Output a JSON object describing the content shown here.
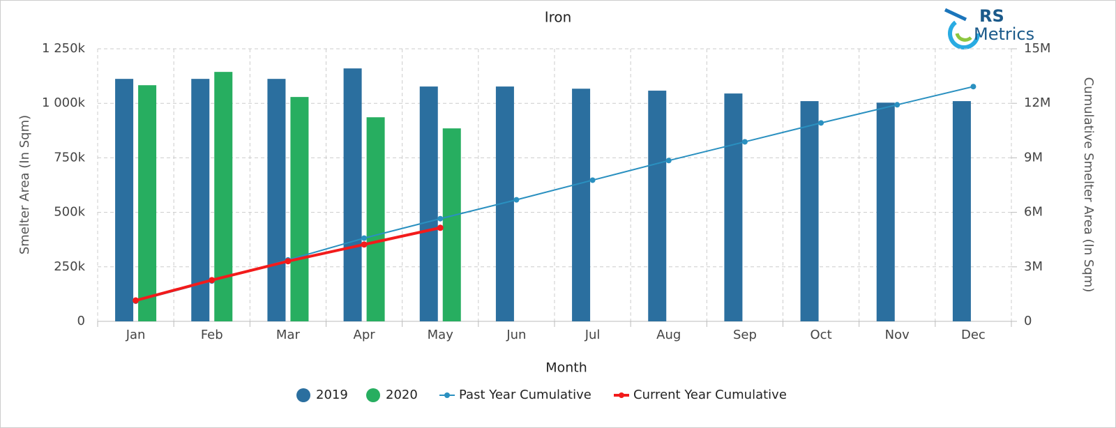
{
  "logo": {
    "line1": "RS",
    "line2": "Metrics"
  },
  "chart_data": {
    "type": "bar",
    "title": "Iron",
    "x_label": "Month",
    "y_label": "Smelter Area (In Sqm)",
    "y2_label": "Cumulative Smelter Area (In Sqm)",
    "categories": [
      "Jan",
      "Feb",
      "Mar",
      "Apr",
      "May",
      "Jun",
      "Jul",
      "Aug",
      "Sep",
      "Oct",
      "Nov",
      "Dec"
    ],
    "series": [
      {
        "name": "2019",
        "type": "bar",
        "color": "#2b6f9f",
        "values": [
          1112000,
          1112000,
          1112000,
          1160000,
          1077000,
          1077000,
          1067000,
          1058000,
          1045000,
          1010000,
          1003000,
          1010000
        ]
      },
      {
        "name": "2020",
        "type": "bar",
        "color": "#27ae60",
        "values": [
          1083000,
          1144000,
          1029000,
          936000,
          885000,
          null,
          null,
          null,
          null,
          null,
          null,
          null
        ]
      },
      {
        "name": "Past Year Cumulative",
        "type": "line",
        "axis": "y2",
        "color": "#2a90c0",
        "values": [
          1110000,
          2220000,
          3380000,
          4580000,
          5650000,
          6690000,
          7770000,
          8850000,
          9880000,
          10920000,
          11920000,
          12920000
        ]
      },
      {
        "name": "Current Year Cumulative",
        "type": "line",
        "axis": "y2",
        "color": "#f21b1b",
        "values": [
          1150000,
          2270000,
          3310000,
          4230000,
          5150000,
          null,
          null,
          null,
          null,
          null,
          null,
          null
        ]
      }
    ],
    "ylim": [
      0,
      1250000
    ],
    "yticks": [
      {
        "value": 0,
        "label": "0"
      },
      {
        "value": 250000,
        "label": "250k"
      },
      {
        "value": 500000,
        "label": "500k"
      },
      {
        "value": 750000,
        "label": "750k"
      },
      {
        "value": 1000000,
        "label": "1 000k"
      },
      {
        "value": 1250000,
        "label": "1 250k"
      }
    ],
    "y2lim": [
      0,
      15000000
    ],
    "y2ticks": [
      {
        "value": 0,
        "label": "0"
      },
      {
        "value": 3000000,
        "label": "3M"
      },
      {
        "value": 6000000,
        "label": "6M"
      },
      {
        "value": 9000000,
        "label": "9M"
      },
      {
        "value": 12000000,
        "label": "12M"
      },
      {
        "value": 15000000,
        "label": "15M"
      }
    ],
    "grid": true,
    "legend": "bottom"
  }
}
